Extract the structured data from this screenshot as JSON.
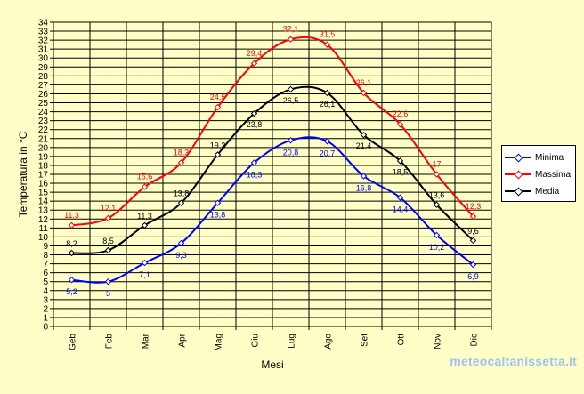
{
  "chart_data": {
    "type": "line",
    "title": "",
    "xlabel": "Mesi",
    "ylabel": "Temperatura in °C",
    "ylim": [
      0,
      34
    ],
    "ytick_step": 1,
    "grid": true,
    "legend_position": "right",
    "categories": [
      "Geb",
      "Feb",
      "Mar",
      "Apr",
      "Mag",
      "Giu",
      "Lug",
      "Ago",
      "Set",
      "Ott",
      "Nov",
      "Dic"
    ],
    "series": [
      {
        "name": "Minima",
        "color": "#0000ff",
        "values": [
          5.2,
          5,
          7.1,
          9.3,
          13.8,
          18.3,
          20.8,
          20.7,
          16.8,
          14.4,
          10.2,
          6.9
        ],
        "labels": [
          "5,2",
          "5",
          "7,1",
          "9,3",
          "13,8",
          "18,3",
          "20,8",
          "20,7",
          "16,8",
          "14,4",
          "10,2",
          "6,9"
        ]
      },
      {
        "name": "Massima",
        "color": "#ff0000",
        "values": [
          11.3,
          12.1,
          15.6,
          18.3,
          24.5,
          29.4,
          32.1,
          31.5,
          26.1,
          22.6,
          17,
          12.3
        ],
        "labels": [
          "11,3",
          "12,1",
          "15,6",
          "18,3",
          "24,5",
          "29,4",
          "32,1",
          "31,5",
          "26,1",
          "22,6",
          "17",
          "12,3"
        ]
      },
      {
        "name": "Media",
        "color": "#000000",
        "values": [
          8.2,
          8.5,
          11.3,
          13.8,
          19.2,
          23.8,
          26.5,
          26.1,
          21.4,
          18.5,
          13.6,
          9.6
        ],
        "labels": [
          "8,2",
          "8,5",
          "11,3",
          "13,8",
          "19,2",
          "23,8",
          "26,5",
          "26,1",
          "21,4",
          "18,5",
          "13,6",
          "9,6"
        ]
      }
    ]
  },
  "watermark": "meteocaltanissetta.it"
}
